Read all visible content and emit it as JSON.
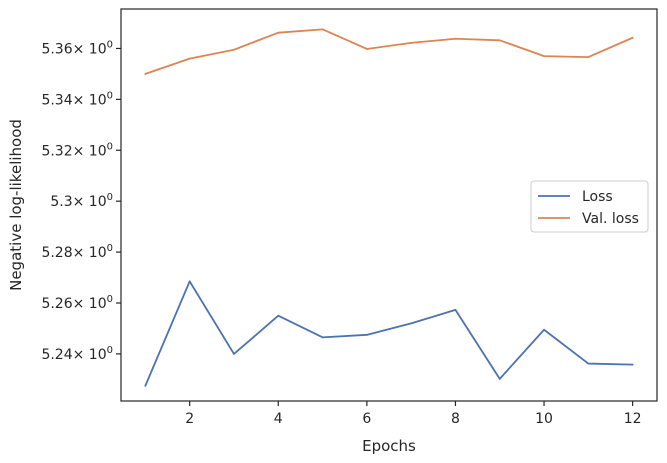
{
  "chart_data": {
    "type": "line",
    "xlabel": "Epochs",
    "ylabel": "Negative log-likelihood",
    "xlim": [
      0.45,
      12.55
    ],
    "ylim": [
      5.2215,
      5.3755
    ],
    "x_ticks": [
      2,
      4,
      6,
      8,
      10,
      12
    ],
    "x_tick_labels": [
      "2",
      "4",
      "6",
      "8",
      "10",
      "12"
    ],
    "y_ticks": [
      5.24,
      5.26,
      5.28,
      5.3,
      5.32,
      5.34,
      5.36
    ],
    "y_tick_labels": [
      "5.24",
      "5.26",
      "5.28",
      "5.3",
      "5.32",
      "5.34",
      "5.36"
    ],
    "y_tick_suffix": "× 10",
    "y_tick_exponent": "0",
    "grid": false,
    "legend_position": "center-right",
    "x": [
      1,
      2,
      3,
      4,
      5,
      6,
      7,
      8,
      9,
      10,
      11,
      12
    ],
    "series": [
      {
        "name": "Loss",
        "color": "#4c72b0",
        "values": [
          5.2275,
          5.2685,
          5.24,
          5.255,
          5.2465,
          5.2475,
          5.252,
          5.2573,
          5.2302,
          5.2495,
          5.2362,
          5.2358
        ]
      },
      {
        "name": "Val. loss",
        "color": "#dd8452",
        "values": [
          5.35,
          5.356,
          5.3595,
          5.3662,
          5.3675,
          5.3598,
          5.3622,
          5.3638,
          5.3632,
          5.357,
          5.3566,
          5.3642
        ]
      }
    ]
  }
}
